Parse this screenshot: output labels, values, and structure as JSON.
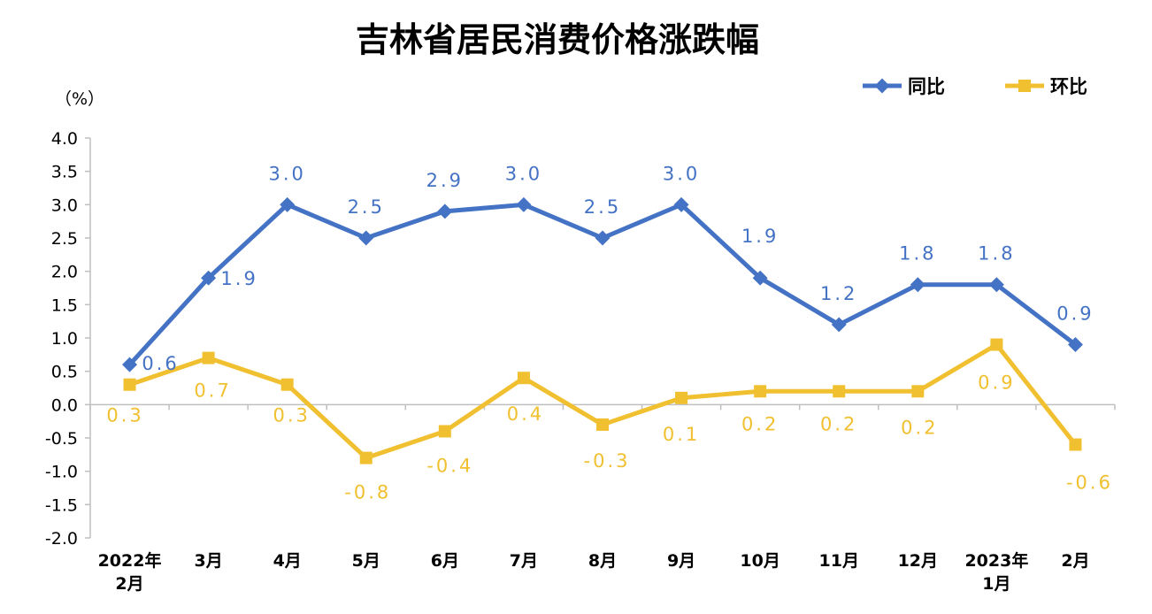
{
  "chart_data": {
    "type": "line",
    "title": "吉林省居民消费价格涨跌幅",
    "unit_label": "（%）",
    "categories": [
      [
        "2022年",
        "2月"
      ],
      [
        "3月"
      ],
      [
        "4月"
      ],
      [
        "5月"
      ],
      [
        "6月"
      ],
      [
        "7月"
      ],
      [
        "8月"
      ],
      [
        "9月"
      ],
      [
        "10月"
      ],
      [
        "11月"
      ],
      [
        "12月"
      ],
      [
        "2023年",
        "1月"
      ],
      [
        "2月"
      ]
    ],
    "yticks": [
      "4.0",
      "3.5",
      "3.0",
      "2.5",
      "2.0",
      "1.5",
      "1.0",
      "0.5",
      "0.0",
      "-0.5",
      "-1.0",
      "-1.5",
      "-2.0"
    ],
    "ylim": [
      -2.0,
      4.0
    ],
    "ystep": 0.5,
    "grid": false,
    "legend_position": "top-right",
    "series": [
      {
        "name": "同比",
        "color": "#4472c4",
        "marker": "diamond",
        "values": [
          0.6,
          1.9,
          3.0,
          2.5,
          2.9,
          3.0,
          2.5,
          3.0,
          1.9,
          1.2,
          1.8,
          1.8,
          0.9
        ],
        "labels": [
          "0.6",
          "1.9",
          "3.0",
          "2.5",
          "2.9",
          "3.0",
          "2.5",
          "3.0",
          "1.9",
          "1.2",
          "1.8",
          "1.8",
          "0.9"
        ]
      },
      {
        "name": "环比",
        "color": "#f0c030",
        "marker": "square",
        "values": [
          0.3,
          0.7,
          0.3,
          -0.8,
          -0.4,
          0.4,
          -0.3,
          0.1,
          0.2,
          0.2,
          0.2,
          0.9,
          -0.6
        ],
        "labels": [
          "0.3",
          "0.7",
          "0.3",
          "-0.8",
          "-0.4",
          "0.4",
          "-0.3",
          "0.1",
          "0.2",
          "0.2",
          "0.2",
          "0.9",
          "-0.6"
        ]
      }
    ]
  }
}
